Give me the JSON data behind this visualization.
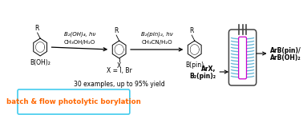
{
  "bg_color": "#ffffff",
  "orange_color": "#FF6600",
  "light_blue": "#6BB8D8",
  "magenta": "#CC00CC",
  "dark_gray": "#444444",
  "cyan_border": "#44CCEE",
  "box_text": "batch & flow photolytic borylation",
  "label_x_eq": "X = I, Br",
  "label_examples": "30 examples, up to 95% yield",
  "reagent_left_top": "B₂(OH)₄, hν",
  "reagent_left_bot": "CH₃OH/H₂O",
  "reagent_right_top": "B₂(pin)₂, hν",
  "reagent_right_bot": "CH₃CN/H₂O",
  "label_boh2": "B(OH)₂",
  "label_bpin": "B(pin)",
  "label_arx": "ArX,",
  "label_b2pin2": "B₂(pin)₂",
  "label_arbpin": "ArB(pin)/",
  "label_arboh2": "ArB(OH)₂"
}
